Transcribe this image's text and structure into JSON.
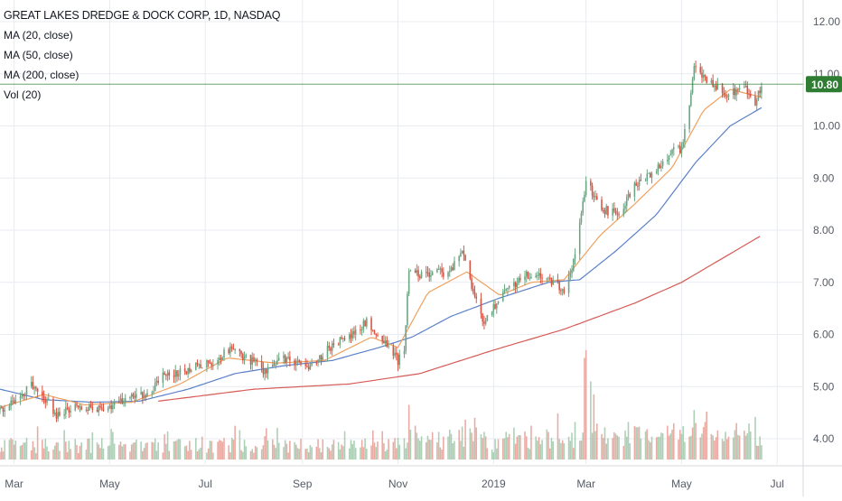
{
  "header": {
    "title": "GREAT LAKES DREDGE & DOCK CORP, 1D, NASDAQ"
  },
  "legend": [
    {
      "label": "MA (20, close)"
    },
    {
      "label": "MA (50, close)"
    },
    {
      "label": "MA (200, close)"
    },
    {
      "label": "Vol (20)"
    }
  ],
  "colors": {
    "up": "#6ba583",
    "down": "#d75442",
    "vol_up": "#9dc7a9",
    "vol_down": "#e59c93",
    "ma20": "#f0a15e",
    "ma50": "#5b80c8",
    "ma200": "#d65a55",
    "last_price": "#2e7d32",
    "grid": "#e8ebf0",
    "axis_text": "#555b66"
  },
  "chart_data": {
    "type": "candlestick",
    "title": "GREAT LAKES DREDGE & DOCK CORP, 1D, NASDAQ",
    "xlabel": "",
    "ylabel": "",
    "x_ticks": [
      "Mar",
      "May",
      "Jul",
      "Sep",
      "Nov",
      "2019",
      "Mar",
      "May",
      "Jul"
    ],
    "y_ticks": [
      "4.00",
      "5.00",
      "6.00",
      "7.00",
      "8.00",
      "9.00",
      "10.00",
      "11.00",
      "12.00"
    ],
    "ylim": [
      3.6,
      12.3
    ],
    "last_price": "10.80",
    "grid": true,
    "price_path": [
      [
        "2018-02-20",
        4.55
      ],
      [
        "2018-03-05",
        4.75
      ],
      [
        "2018-03-12",
        5.05
      ],
      [
        "2018-03-19",
        4.85
      ],
      [
        "2018-03-28",
        4.45
      ],
      [
        "2018-04-10",
        4.6
      ],
      [
        "2018-04-25",
        4.55
      ],
      [
        "2018-05-10",
        4.75
      ],
      [
        "2018-05-25",
        4.85
      ],
      [
        "2018-06-05",
        5.25
      ],
      [
        "2018-06-18",
        5.3
      ],
      [
        "2018-07-02",
        5.45
      ],
      [
        "2018-07-18",
        5.7
      ],
      [
        "2018-07-30",
        5.5
      ],
      [
        "2018-08-08",
        5.3
      ],
      [
        "2018-08-22",
        5.55
      ],
      [
        "2018-09-06",
        5.35
      ],
      [
        "2018-09-20",
        5.8
      ],
      [
        "2018-10-03",
        6.0
      ],
      [
        "2018-10-12",
        6.25
      ],
      [
        "2018-10-24",
        5.85
      ],
      [
        "2018-11-01",
        5.5
      ],
      [
        "2018-11-05",
        5.75
      ],
      [
        "2018-11-08",
        7.2
      ],
      [
        "2018-11-20",
        7.15
      ],
      [
        "2018-12-04",
        7.2
      ],
      [
        "2018-12-12",
        7.6
      ],
      [
        "2018-12-20",
        6.7
      ],
      [
        "2018-12-26",
        6.2
      ],
      [
        "2019-01-07",
        6.8
      ],
      [
        "2019-01-22",
        7.15
      ],
      [
        "2019-02-05",
        7.05
      ],
      [
        "2019-02-15",
        6.85
      ],
      [
        "2019-02-22",
        7.5
      ],
      [
        "2019-03-01",
        8.9
      ],
      [
        "2019-03-12",
        8.4
      ],
      [
        "2019-03-22",
        8.3
      ],
      [
        "2019-04-01",
        8.9
      ],
      [
        "2019-04-12",
        9.1
      ],
      [
        "2019-04-24",
        9.5
      ],
      [
        "2019-05-01",
        9.55
      ],
      [
        "2019-05-06",
        10.3
      ],
      [
        "2019-05-09",
        11.1
      ],
      [
        "2019-05-20",
        10.8
      ],
      [
        "2019-05-31",
        10.6
      ],
      [
        "2019-06-10",
        10.75
      ],
      [
        "2019-06-17",
        10.45
      ],
      [
        "2019-06-21",
        10.8
      ]
    ],
    "ma20_path": [
      [
        "2018-02-20",
        4.6
      ],
      [
        "2018-03-20",
        4.85
      ],
      [
        "2018-04-15",
        4.65
      ],
      [
        "2018-05-15",
        4.7
      ],
      [
        "2018-06-15",
        5.05
      ],
      [
        "2018-07-15",
        5.55
      ],
      [
        "2018-08-15",
        5.45
      ],
      [
        "2018-09-15",
        5.5
      ],
      [
        "2018-10-15",
        5.95
      ],
      [
        "2018-11-01",
        5.75
      ],
      [
        "2018-11-20",
        6.8
      ],
      [
        "2018-12-15",
        7.2
      ],
      [
        "2019-01-05",
        6.75
      ],
      [
        "2019-01-25",
        7.0
      ],
      [
        "2019-02-15",
        7.05
      ],
      [
        "2019-03-10",
        7.9
      ],
      [
        "2019-04-01",
        8.5
      ],
      [
        "2019-04-25",
        9.2
      ],
      [
        "2019-05-15",
        10.3
      ],
      [
        "2019-06-01",
        10.7
      ],
      [
        "2019-06-21",
        10.55
      ]
    ],
    "ma50_path": [
      [
        "2018-02-20",
        4.95
      ],
      [
        "2018-03-20",
        4.75
      ],
      [
        "2018-04-20",
        4.7
      ],
      [
        "2018-05-20",
        4.72
      ],
      [
        "2018-06-20",
        4.95
      ],
      [
        "2018-07-20",
        5.25
      ],
      [
        "2018-08-20",
        5.4
      ],
      [
        "2018-09-20",
        5.5
      ],
      [
        "2018-10-20",
        5.75
      ],
      [
        "2018-11-10",
        5.95
      ],
      [
        "2018-12-05",
        6.35
      ],
      [
        "2019-01-05",
        6.7
      ],
      [
        "2019-02-05",
        7.0
      ],
      [
        "2019-02-25",
        7.05
      ],
      [
        "2019-03-20",
        7.6
      ],
      [
        "2019-04-15",
        8.3
      ],
      [
        "2019-05-10",
        9.3
      ],
      [
        "2019-06-01",
        10.0
      ],
      [
        "2019-06-21",
        10.35
      ]
    ],
    "ma200_path": [
      [
        "2018-06-01",
        4.72
      ],
      [
        "2018-08-01",
        4.95
      ],
      [
        "2018-10-01",
        5.05
      ],
      [
        "2018-11-15",
        5.25
      ],
      [
        "2019-01-01",
        5.7
      ],
      [
        "2019-02-15",
        6.1
      ],
      [
        "2019-04-01",
        6.6
      ],
      [
        "2019-05-01",
        7.0
      ],
      [
        "2019-06-21",
        7.9
      ]
    ],
    "volume_spikes": [
      [
        "2018-11-08",
        4.65
      ],
      [
        "2018-11-12",
        4.25
      ],
      [
        "2018-12-20",
        4.4
      ],
      [
        "2019-01-25",
        4.25
      ],
      [
        "2019-02-28",
        5.55
      ],
      [
        "2019-03-01",
        5.7
      ],
      [
        "2019-03-04",
        5.1
      ],
      [
        "2019-03-06",
        4.85
      ],
      [
        "2019-04-22",
        4.25
      ],
      [
        "2019-05-09",
        4.55
      ],
      [
        "2019-05-10",
        4.3
      ],
      [
        "2019-06-05",
        4.3
      ]
    ]
  }
}
